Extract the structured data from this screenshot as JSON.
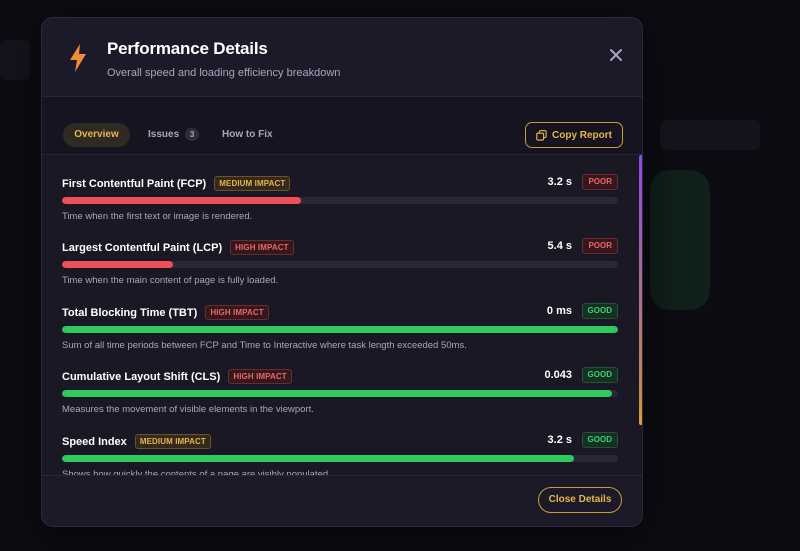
{
  "colors": {
    "accent": "#e8b54a",
    "poor": "#ef4f55",
    "good": "#2fc95c",
    "modal_bg": "#1a1825"
  },
  "header": {
    "icon": "lightning-bolt-icon",
    "title": "Performance Details",
    "subtitle": "Overall speed and loading efficiency breakdown",
    "close_icon": "close-icon"
  },
  "tabs": {
    "overview": "Overview",
    "issues": "Issues",
    "issues_count": "3",
    "how_to_fix": "How to Fix",
    "active": "Overview"
  },
  "copy_report": {
    "label": "Copy Report",
    "icon": "copy-icon"
  },
  "metrics": [
    {
      "name": "First Contentful Paint (FCP)",
      "impact": "MEDIUM IMPACT",
      "impact_level": "medium",
      "value": "3.2 s",
      "status": "POOR",
      "status_level": "poor",
      "progress": 0.43,
      "description": "Time when the first text or image is rendered."
    },
    {
      "name": "Largest Contentful Paint (LCP)",
      "impact": "HIGH IMPACT",
      "impact_level": "high",
      "value": "5.4 s",
      "status": "POOR",
      "status_level": "poor",
      "progress": 0.2,
      "description": "Time when the main content of page is fully loaded."
    },
    {
      "name": "Total Blocking Time (TBT)",
      "impact": "HIGH IMPACT",
      "impact_level": "high",
      "value": "0 ms",
      "status": "GOOD",
      "status_level": "good",
      "progress": 1.0,
      "description": "Sum of all time periods between FCP and Time to Interactive where task length exceeded 50ms."
    },
    {
      "name": "Cumulative Layout Shift (CLS)",
      "impact": "HIGH IMPACT",
      "impact_level": "high",
      "value": "0.043",
      "status": "GOOD",
      "status_level": "good",
      "progress": 0.99,
      "description": "Measures the movement of visible elements in the viewport."
    },
    {
      "name": "Speed Index",
      "impact": "MEDIUM IMPACT",
      "impact_level": "medium",
      "value": "3.2 s",
      "status": "GOOD",
      "status_level": "good",
      "progress": 0.92,
      "description": "Shows how quickly the contents of a page are visibly populated."
    }
  ],
  "footer": {
    "close_label": "Close Details"
  }
}
